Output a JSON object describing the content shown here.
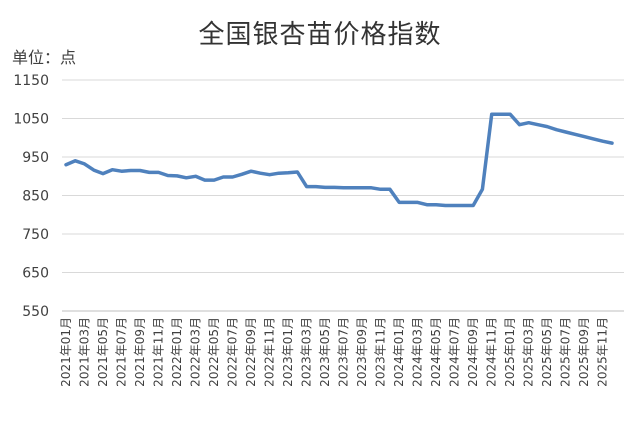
{
  "chart_data": {
    "type": "line",
    "title": "全国银杏苗价格指数",
    "unit_label": "单位：点",
    "xlabel": "",
    "ylabel": "",
    "ylim": [
      550,
      1150
    ],
    "yticks": [
      550,
      650,
      750,
      850,
      950,
      1050,
      1150
    ],
    "grid": true,
    "legend": "none",
    "line_color": "#4F81BD",
    "x_tick_labels": [
      "2021年01月",
      "2021年03月",
      "2021年05月",
      "2021年07月",
      "2021年09月",
      "2021年11月",
      "2022年01月",
      "2022年03月",
      "2022年05月",
      "2022年07月",
      "2022年09月",
      "2022年11月",
      "2023年01月",
      "2023年03月",
      "2023年05月",
      "2023年07月",
      "2023年09月",
      "2023年11月",
      "2024年01月",
      "2024年03月",
      "2024年05月",
      "2024年07月",
      "2024年09月",
      "2024年11月",
      "2025年01月",
      "2025年03月",
      "2025年05月",
      "2025年07月",
      "2025年09月",
      "2025年11月"
    ],
    "x": [
      "2021年01月",
      "2021年02月",
      "2021年03月",
      "2021年04月",
      "2021年05月",
      "2021年06月",
      "2021年07月",
      "2021年08月",
      "2021年09月",
      "2021年10月",
      "2021年11月",
      "2021年12月",
      "2022年01月",
      "2022年02月",
      "2022年03月",
      "2022年04月",
      "2022年05月",
      "2022年06月",
      "2022年07月",
      "2022年08月",
      "2022年09月",
      "2022年10月",
      "2022年11月",
      "2022年12月",
      "2023年01月",
      "2023年02月",
      "2023年03月",
      "2023年04月",
      "2023年05月",
      "2023年06月",
      "2023年07月",
      "2023年08月",
      "2023年09月",
      "2023年10月",
      "2023年11月",
      "2023年12月",
      "2024年01月",
      "2024年02月",
      "2024年03月",
      "2024年04月",
      "2024年05月",
      "2024年06月",
      "2024年07月",
      "2024年08月",
      "2024年09月",
      "2024年10月",
      "2024年11月",
      "2024年12月",
      "2025年01月",
      "2025年02月",
      "2025年03月",
      "2025年04月",
      "2025年05月",
      "2025年06月",
      "2025年07月",
      "2025年08月",
      "2025年09月",
      "2025年10月",
      "2025年11月",
      "2025年12月"
    ],
    "values": [
      930,
      940,
      932,
      916,
      907,
      917,
      913,
      915,
      915,
      910,
      910,
      902,
      901,
      896,
      900,
      890,
      890,
      898,
      898,
      905,
      913,
      908,
      904,
      908,
      909,
      911,
      873,
      873,
      871,
      871,
      870,
      870,
      870,
      870,
      866,
      866,
      832,
      832,
      832,
      826,
      826,
      824,
      824,
      824,
      824,
      866,
      1061,
      1061,
      1061,
      1034,
      1039,
      1034,
      1029,
      1021,
      1015,
      1009,
      1003,
      997,
      991,
      986
    ]
  }
}
